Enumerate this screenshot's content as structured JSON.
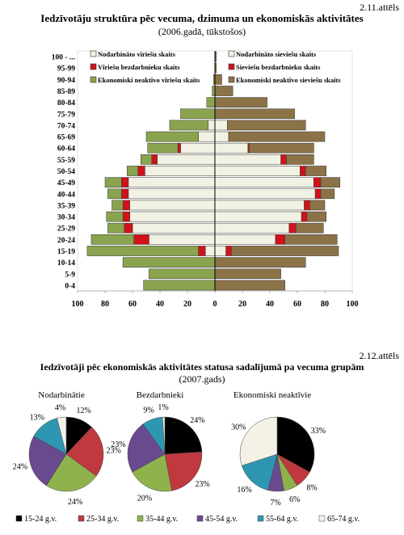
{
  "figure1": {
    "number": "2.11.attēls",
    "title": "Iedzīvotāju struktūra pēc vecuma, dzimuma un ekonomiskās aktivitātes",
    "subtitle": "(2006.gadā, tūkstošos)"
  },
  "figure2": {
    "number": "2.12.attēls",
    "title": "Iedzīvotāji pēc ekonomiskās aktivitātes statusa sadalījumā pa vecuma grupām",
    "subtitle": "(2007.gads)"
  },
  "chart_data": [
    {
      "type": "bar",
      "orientation": "horizontal-stacked-population-pyramid",
      "categories": [
        "0-4",
        "5-9",
        "10-14",
        "15-19",
        "20-24",
        "25-29",
        "30-34",
        "35-39",
        "40-44",
        "45-49",
        "50-54",
        "55-59",
        "60-64",
        "65-69",
        "70-74",
        "75-79",
        "80-84",
        "85-89",
        "90-94",
        "95-99",
        "100 - ..."
      ],
      "xlim": [
        -100,
        100
      ],
      "x_ticks": [
        "100",
        "80",
        "60",
        "40",
        "20",
        "0",
        "20",
        "40",
        "60",
        "80",
        "100"
      ],
      "grid": false,
      "legend": "top",
      "series": [
        {
          "name": "Nodarbināto vīriešu skaits",
          "side": "left",
          "color": "#f2f2e4",
          "values": [
            0,
            0,
            0,
            7,
            48,
            60,
            62,
            62,
            63,
            63,
            51,
            42,
            25,
            12,
            5,
            0,
            0,
            0,
            0,
            0,
            0
          ]
        },
        {
          "name": "Vīriešu bezdarbnieku skaits",
          "side": "left",
          "color": "#d0121b",
          "values": [
            0,
            0,
            0,
            5,
            11,
            6,
            5,
            5,
            5,
            5,
            5,
            4,
            2,
            0,
            0,
            0,
            0,
            0,
            0,
            0,
            0
          ]
        },
        {
          "name": "Ekonomiski neaktīvo vīriešu skaits",
          "side": "left",
          "color": "#8aa34e",
          "values": [
            52,
            48,
            67,
            81,
            31,
            12,
            12,
            8,
            10,
            12,
            8,
            8,
            22,
            38,
            28,
            25,
            6,
            2,
            1,
            0,
            0
          ]
        },
        {
          "name": "Nodarbināto sieviešu skaits",
          "side": "right",
          "color": "#f2f2e4",
          "values": [
            0,
            0,
            0,
            8,
            44,
            54,
            63,
            65,
            73,
            72,
            62,
            48,
            24,
            10,
            9,
            0,
            0,
            0,
            0,
            0,
            0
          ]
        },
        {
          "name": "Sieviešu bezdarbnieku skaits",
          "side": "right",
          "color": "#d0121b",
          "values": [
            0,
            0,
            0,
            4,
            7,
            5,
            4,
            4,
            4,
            5,
            4,
            4,
            1,
            0,
            0,
            0,
            0,
            0,
            0,
            0,
            0
          ]
        },
        {
          "name": "Ekonomiski neaktīvo sieviešu skaits",
          "side": "right",
          "color": "#8c7347",
          "values": [
            51,
            48,
            66,
            78,
            38,
            20,
            14,
            11,
            10,
            14,
            15,
            20,
            47,
            70,
            57,
            58,
            38,
            13,
            5,
            1,
            1
          ]
        }
      ]
    },
    {
      "type": "pie",
      "title": "Nodarbinātie",
      "categories": [
        "15-24 g.v.",
        "25-34 g.v.",
        "35-44 g.v.",
        "45-54 g.v.",
        "55-64 g.v.",
        "65-74 g.v."
      ],
      "values": [
        12,
        23,
        24,
        24,
        13,
        4
      ],
      "labels": [
        "12%",
        "23%",
        "24%",
        "24%",
        "13%",
        "4%"
      ],
      "colors": [
        "#000000",
        "#c0393e",
        "#8fb24c",
        "#6a4a8e",
        "#2d97b2",
        "#f4f1e6"
      ]
    },
    {
      "type": "pie",
      "title": "Bezdarbnieki",
      "categories": [
        "15-24 g.v.",
        "25-34 g.v.",
        "35-44 g.v.",
        "45-54 g.v.",
        "55-64 g.v.",
        "65-74 g.v."
      ],
      "values": [
        24,
        23,
        20,
        23,
        9,
        1
      ],
      "labels": [
        "24%",
        "23%",
        "20%",
        "23%",
        "9%",
        "1%"
      ],
      "colors": [
        "#000000",
        "#c0393e",
        "#8fb24c",
        "#6a4a8e",
        "#2d97b2",
        "#f4f1e6"
      ]
    },
    {
      "type": "pie",
      "title": "Ekonomiski neaktīvie",
      "categories": [
        "15-24 g.v.",
        "25-34 g.v.",
        "35-44 g.v.",
        "45-54 g.v.",
        "55-64 g.v.",
        "65-74 g.v."
      ],
      "values": [
        33,
        8,
        6,
        7,
        16,
        30
      ],
      "labels": [
        "33%",
        "8%",
        "6%",
        "7%",
        "16%",
        "30%"
      ],
      "colors": [
        "#000000",
        "#c0393e",
        "#8fb24c",
        "#6a4a8e",
        "#2d97b2",
        "#f4f1e6"
      ]
    }
  ]
}
